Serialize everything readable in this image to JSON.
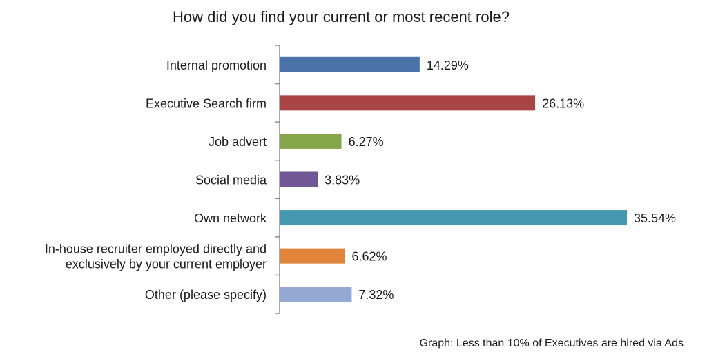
{
  "chart_data": {
    "type": "bar",
    "orientation": "horizontal",
    "title": "How did you find your current or most recent role?",
    "caption": "Graph: Less than 10% of Executives are hired via Ads",
    "categories": [
      "Internal promotion",
      "Executive Search firm",
      "Job advert",
      "Social media",
      "Own network",
      "In-house recruiter employed directly and exclusively by your current employer",
      "Other (please specify)"
    ],
    "category_lines": [
      [
        "Internal promotion"
      ],
      [
        "Executive Search firm"
      ],
      [
        "Job advert"
      ],
      [
        "Social media"
      ],
      [
        "Own network"
      ],
      [
        "In-house recruiter employed directly and",
        "exclusively by your current employer"
      ],
      [
        "Other (please specify)"
      ]
    ],
    "values": [
      14.29,
      26.13,
      6.27,
      3.83,
      35.54,
      6.62,
      7.32
    ],
    "value_labels": [
      "14.29%",
      "26.13%",
      "6.27%",
      "3.83%",
      "35.54%",
      "6.62%",
      "7.32%"
    ],
    "colors": [
      "#4a73aa",
      "#a94545",
      "#86a64a",
      "#725796",
      "#4499b0",
      "#e0843a",
      "#93a9d4"
    ],
    "xlim": [
      0,
      38
    ],
    "grid": false,
    "legend": "none"
  }
}
